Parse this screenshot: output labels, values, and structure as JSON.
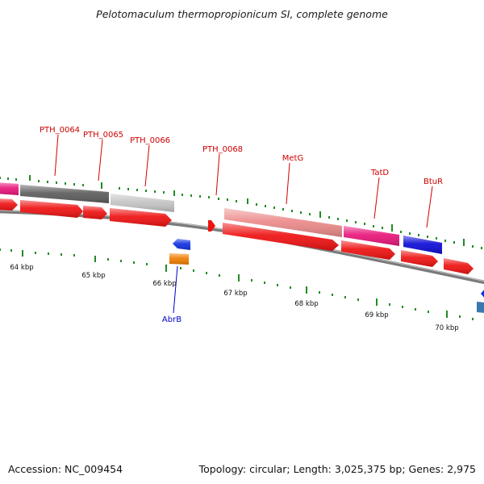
{
  "title": "Pelotomaculum thermopropionicum SI, complete genome",
  "footer": {
    "accession": "Accession: NC_009454",
    "summary": "Topology: circular; Length: 3,025,375 bp; Genes: 2,975"
  },
  "colors": {
    "backbone": "#7a7a7a",
    "tick": "#228b22",
    "cds_forward": "#ee1111",
    "label_red": "#cc0000",
    "label_blue": "#0000cc"
  },
  "kbp_labels": [
    "64 kbp",
    "65 kbp",
    "66 kbp",
    "67 kbp",
    "68 kbp",
    "69 kbp",
    "70 kbp"
  ],
  "gene_labels": [
    {
      "name": "PTH_0064",
      "color": "red"
    },
    {
      "name": "PTH_0065",
      "color": "red"
    },
    {
      "name": "PTH_0066",
      "color": "red"
    },
    {
      "name": "PTH_0068",
      "color": "red"
    },
    {
      "name": "MetG",
      "color": "red"
    },
    {
      "name": "TatD",
      "color": "red"
    },
    {
      "name": "BtuR",
      "color": "red"
    },
    {
      "name": "AbrB",
      "color": "blue"
    }
  ],
  "features": [
    {
      "name": "PTH_0063 (COG)",
      "color": "#e8157a"
    },
    {
      "name": "PTH_0064 (COG)",
      "color": "#5c5c5c"
    },
    {
      "name": "PTH_0066 (COG)",
      "color": "#c4c4c4"
    },
    {
      "name": "MetG (COG)",
      "color": "#ec8a8a"
    },
    {
      "name": "TatD (COG)",
      "color": "#e8157a"
    },
    {
      "name": "BtuR (COG)",
      "color": "#0b0bd6"
    },
    {
      "name": "AbrB (reverse CDS)",
      "color": "#1030e0"
    },
    {
      "name": "AbrB (COG)",
      "color": "#f07d00"
    },
    {
      "name": "right edge reverse CDS",
      "color": "#1030e0"
    },
    {
      "name": "right edge COG",
      "color": "#3a78b0"
    }
  ]
}
